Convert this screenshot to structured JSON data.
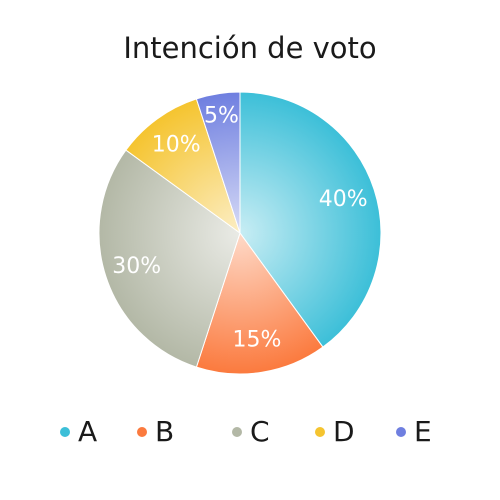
{
  "chart_data": {
    "type": "pie",
    "title": "Intención de voto",
    "categories": [
      "A",
      "B",
      "C",
      "D",
      "E"
    ],
    "values": [
      40,
      15,
      30,
      10,
      5
    ],
    "labels": [
      "40%",
      "15%",
      "30%",
      "10%",
      "5%"
    ],
    "colors": [
      "#3cbfd8",
      "#fb7a3e",
      "#b3b8a6",
      "#f5c42f",
      "#6f7fe0"
    ],
    "legend_position": "bottom",
    "start_angle": "top",
    "direction": "clockwise"
  }
}
